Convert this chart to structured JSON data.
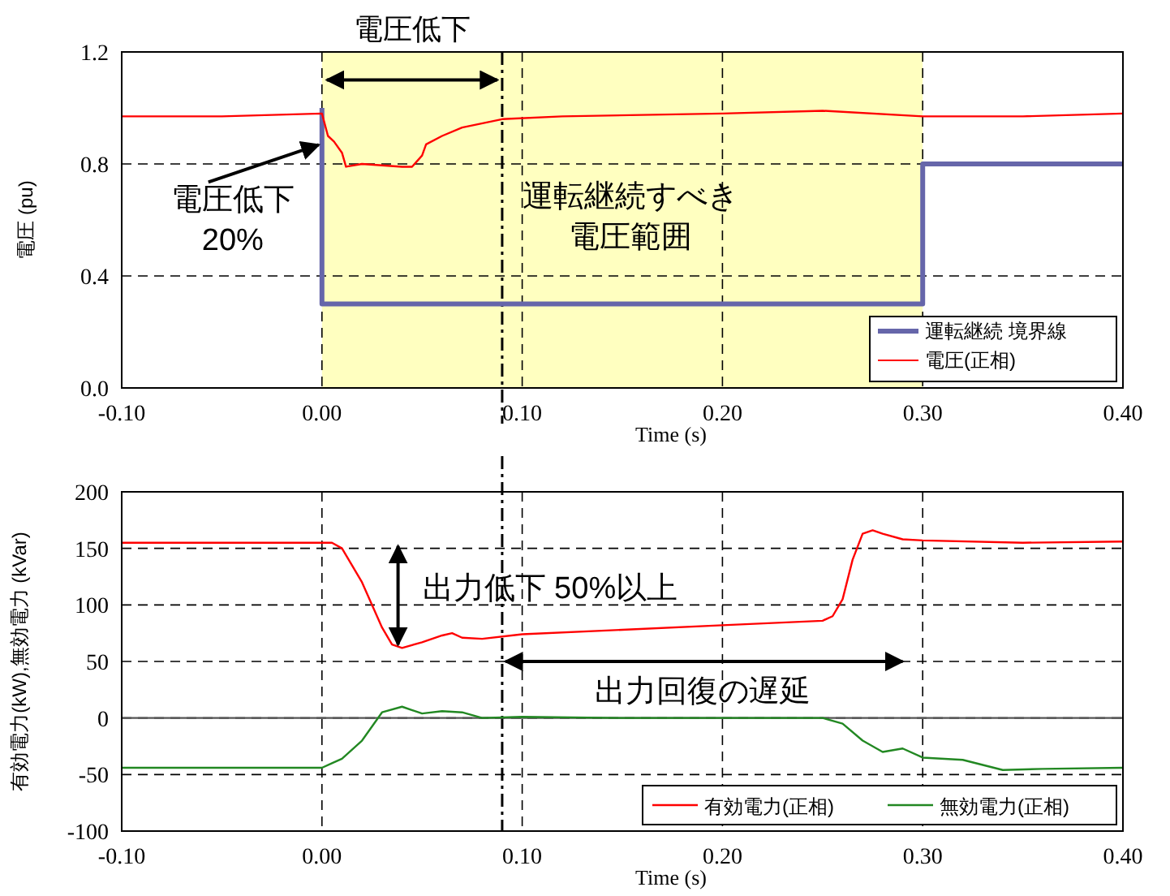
{
  "chart_data": [
    {
      "type": "line",
      "ylabel": "電圧 (pu)",
      "xlabel": "Time (s)",
      "xlim": [
        -0.1,
        0.4
      ],
      "xticks": [
        {
          "value": -0.1,
          "label": "-0.10"
        },
        {
          "value": 0,
          "label": "0.00"
        },
        {
          "value": 0.1,
          "label": "0.10"
        },
        {
          "value": 0.2,
          "label": "0.20"
        },
        {
          "value": 0.3,
          "label": "0.30"
        },
        {
          "value": 0.4,
          "label": "0.40"
        }
      ],
      "ylim": [
        0,
        1.2
      ],
      "yticks": [
        {
          "value": 0,
          "label": "0.0"
        },
        {
          "value": 0.4,
          "label": "0.4"
        },
        {
          "value": 0.8,
          "label": "0.8"
        },
        {
          "value": 1.2,
          "label": "1.2"
        }
      ],
      "grid": true,
      "legend": "bottom right",
      "bands": [
        {
          "axis": "x",
          "from": 0,
          "to": 0.3,
          "color": "#ffffc0"
        }
      ],
      "ref_lines": [
        {
          "axis": "x",
          "value": 0.09,
          "line_style": "dashdot",
          "color": "#000000"
        }
      ],
      "series": [
        {
          "name": "運転継続 境界線",
          "color": "#6666aa",
          "x": [
            0,
            0,
            0.3,
            0.3,
            0.4
          ],
          "values": [
            1.0,
            0.3,
            0.3,
            0.8,
            0.8
          ]
        },
        {
          "name": "電圧(正相)",
          "color": "#ff0000",
          "x": [
            -0.1,
            -0.05,
            0,
            0.003,
            0.006,
            0.01,
            0.012,
            0.02,
            0.04,
            0.045,
            0.05,
            0.052,
            0.06,
            0.07,
            0.09,
            0.12,
            0.2,
            0.25,
            0.3,
            0.35,
            0.4
          ],
          "values": [
            0.97,
            0.97,
            0.98,
            0.9,
            0.88,
            0.84,
            0.79,
            0.8,
            0.79,
            0.79,
            0.83,
            0.87,
            0.9,
            0.93,
            0.96,
            0.97,
            0.98,
            0.99,
            0.97,
            0.97,
            0.98
          ]
        }
      ],
      "annotations": [
        "電圧低下",
        {
          "text": "電圧低下\n20%",
          "x": 0,
          "y": 0.88
        },
        "運転継続すべき",
        "電圧範囲"
      ]
    },
    {
      "type": "line",
      "ylabel": "有効電力(kW),無効電力 (kVar)",
      "xlabel": "Time (s)",
      "xlim": [
        -0.1,
        0.4
      ],
      "xticks": [
        {
          "value": -0.1,
          "label": "-0.10"
        },
        {
          "value": 0,
          "label": "0.00"
        },
        {
          "value": 0.1,
          "label": "0.10"
        },
        {
          "value": 0.2,
          "label": "0.20"
        },
        {
          "value": 0.3,
          "label": "0.30"
        },
        {
          "value": 0.4,
          "label": "0.40"
        }
      ],
      "ylim": [
        -100,
        200
      ],
      "yticks": [
        -100,
        -50,
        0,
        50,
        100,
        150,
        200
      ],
      "grid": true,
      "legend": "bottom right",
      "ref_lines": [
        {
          "axis": "x",
          "value": 0.09,
          "line_style": "dashdot",
          "color": "#000000"
        },
        {
          "axis": "y",
          "value": 0,
          "line_style": "solid",
          "color": "#555555"
        }
      ],
      "series": [
        {
          "name": "有効電力(正相)",
          "color": "#ff0000",
          "x": [
            -0.1,
            0.005,
            0.01,
            0.02,
            0.03,
            0.035,
            0.04,
            0.05,
            0.06,
            0.065,
            0.07,
            0.08,
            0.1,
            0.15,
            0.2,
            0.25,
            0.255,
            0.26,
            0.265,
            0.27,
            0.275,
            0.28,
            0.29,
            0.3,
            0.35,
            0.4
          ],
          "values": [
            155,
            155,
            150,
            120,
            80,
            65,
            62,
            67,
            73,
            75,
            71,
            70,
            74,
            78,
            82,
            86,
            90,
            105,
            140,
            163,
            166,
            163,
            158,
            157,
            155,
            156
          ]
        },
        {
          "name": "無効電力(正相)",
          "color": "#228822",
          "x": [
            -0.1,
            0,
            0.005,
            0.01,
            0.02,
            0.03,
            0.04,
            0.05,
            0.06,
            0.07,
            0.08,
            0.1,
            0.15,
            0.25,
            0.26,
            0.27,
            0.28,
            0.29,
            0.3,
            0.32,
            0.34,
            0.36,
            0.4
          ],
          "values": [
            -44,
            -44,
            -40,
            -36,
            -20,
            5,
            10,
            4,
            6,
            5,
            0,
            1,
            0,
            0,
            -5,
            -20,
            -30,
            -27,
            -35,
            -37,
            -46,
            -45,
            -44
          ]
        }
      ],
      "annotations": [
        {
          "text": "出力低下 50%以上",
          "x": 0.038,
          "y": 62
        },
        "出力回復の遅延"
      ]
    }
  ]
}
